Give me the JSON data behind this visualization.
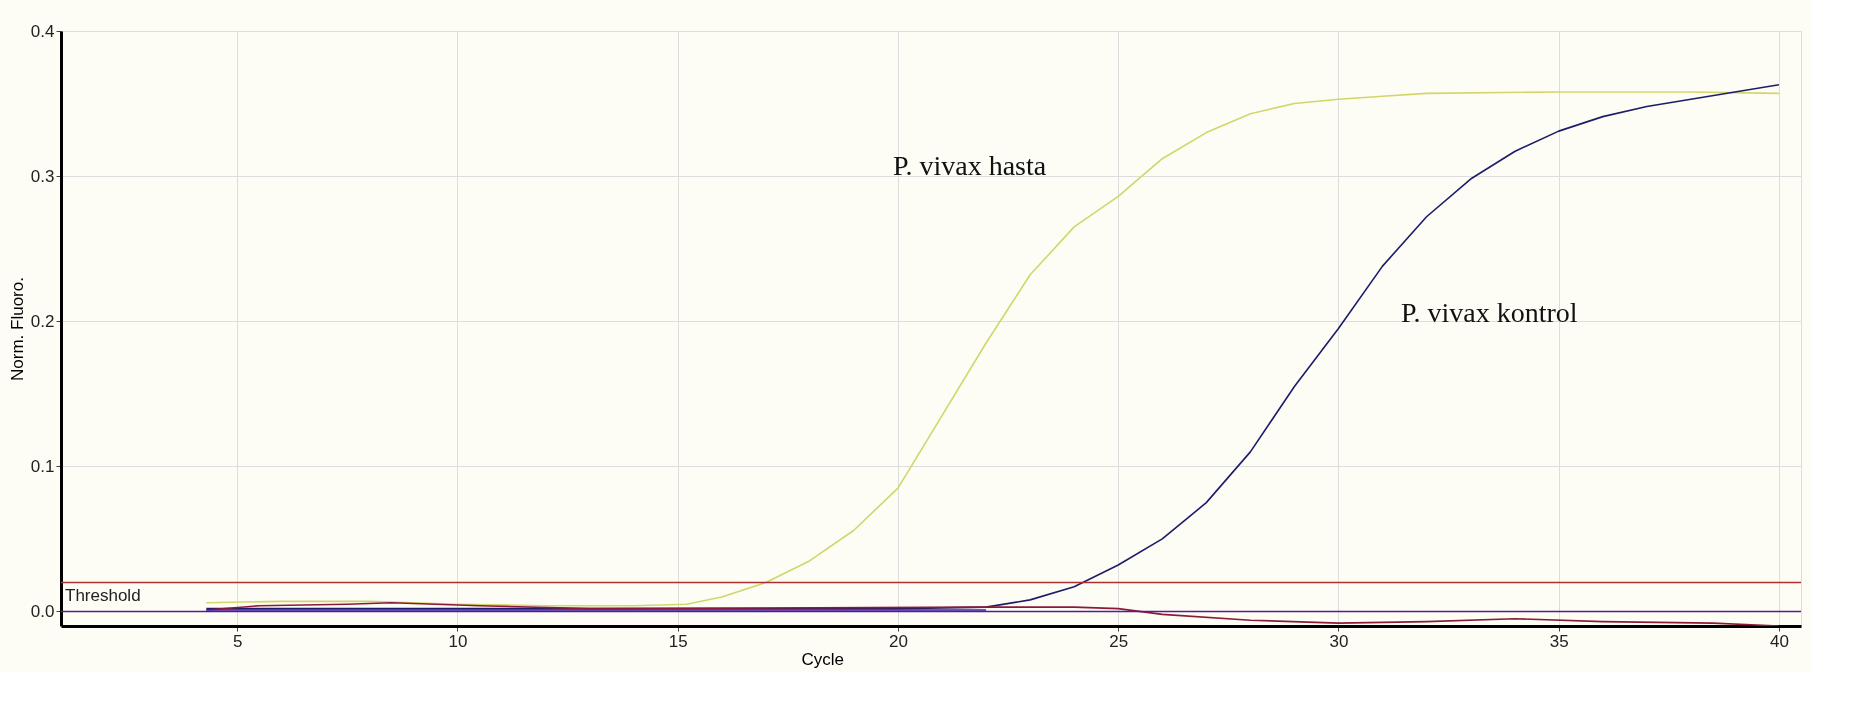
{
  "chart_data": {
    "type": "line",
    "xlabel": "Cycle",
    "ylabel": "Norm. Fluoro.",
    "xlim": [
      1,
      40.5
    ],
    "xticks": [
      5,
      10,
      15,
      20,
      25,
      30,
      35,
      40
    ],
    "ylim": [
      -0.01,
      0.4
    ],
    "yticks": [
      {
        "value": 0,
        "label": "0.0"
      },
      0.1,
      0.2,
      0.3,
      0.4
    ],
    "grid": true,
    "marker": "none",
    "line_style": "solid",
    "series": [
      {
        "color": "#d2d66a",
        "x": [
          4.3,
          6,
          8,
          10,
          12,
          14,
          15.2,
          16,
          17,
          18,
          19,
          20,
          21,
          22,
          23,
          24,
          25,
          26,
          27,
          28,
          29,
          30,
          31,
          32,
          35,
          38,
          40
        ],
        "values": [
          0.006,
          0.007,
          0.007,
          0.005,
          0.004,
          0.004,
          0.005,
          0.01,
          0.02,
          0.035,
          0.056,
          0.085,
          0.135,
          0.185,
          0.232,
          0.265,
          0.286,
          0.312,
          0.33,
          0.343,
          0.35,
          0.353,
          0.355,
          0.357,
          0.358,
          0.358,
          0.357
        ]
      },
      {
        "color": "#1c1c6a",
        "x": [
          4.3,
          10,
          15,
          20,
          22,
          23,
          24,
          25,
          26,
          27,
          28,
          29,
          30,
          31,
          32,
          33,
          34,
          35,
          36,
          37,
          38,
          39,
          40
        ],
        "values": [
          0.002,
          0.002,
          0.002,
          0.002,
          0.003,
          0.008,
          0.017,
          0.032,
          0.05,
          0.075,
          0.11,
          0.155,
          0.195,
          0.238,
          0.272,
          0.298,
          0.317,
          0.331,
          0.341,
          0.348,
          0.353,
          0.358,
          0.363
        ]
      },
      {
        "color": "#8b1a3a",
        "x": [
          4.3,
          5.5,
          7.5,
          8.5,
          10.5,
          13,
          22,
          24,
          25,
          26,
          28,
          30,
          32,
          34,
          36,
          38.5,
          40
        ],
        "values": [
          0.001,
          0.004,
          0.005,
          0.006,
          0.004,
          0.002,
          0.003,
          0.003,
          0.002,
          -0.002,
          -0.006,
          -0.008,
          -0.007,
          -0.005,
          -0.007,
          -0.008,
          -0.01
        ]
      },
      {
        "color": "#3a1fb0",
        "x": [
          4.3,
          8,
          12,
          16,
          20,
          22
        ],
        "values": [
          0.001,
          0.001,
          0.001,
          0.001,
          0.001,
          0.001
        ]
      }
    ],
    "ref_lines": [
      {
        "axis": "y",
        "value": 0.02,
        "label": "Threshold",
        "color": "#b03030"
      },
      {
        "axis": "y",
        "value": 0,
        "color": "#5a1a8a"
      }
    ],
    "annotations": [
      "P. vivax hasta",
      "P. vivax kontrol"
    ]
  }
}
